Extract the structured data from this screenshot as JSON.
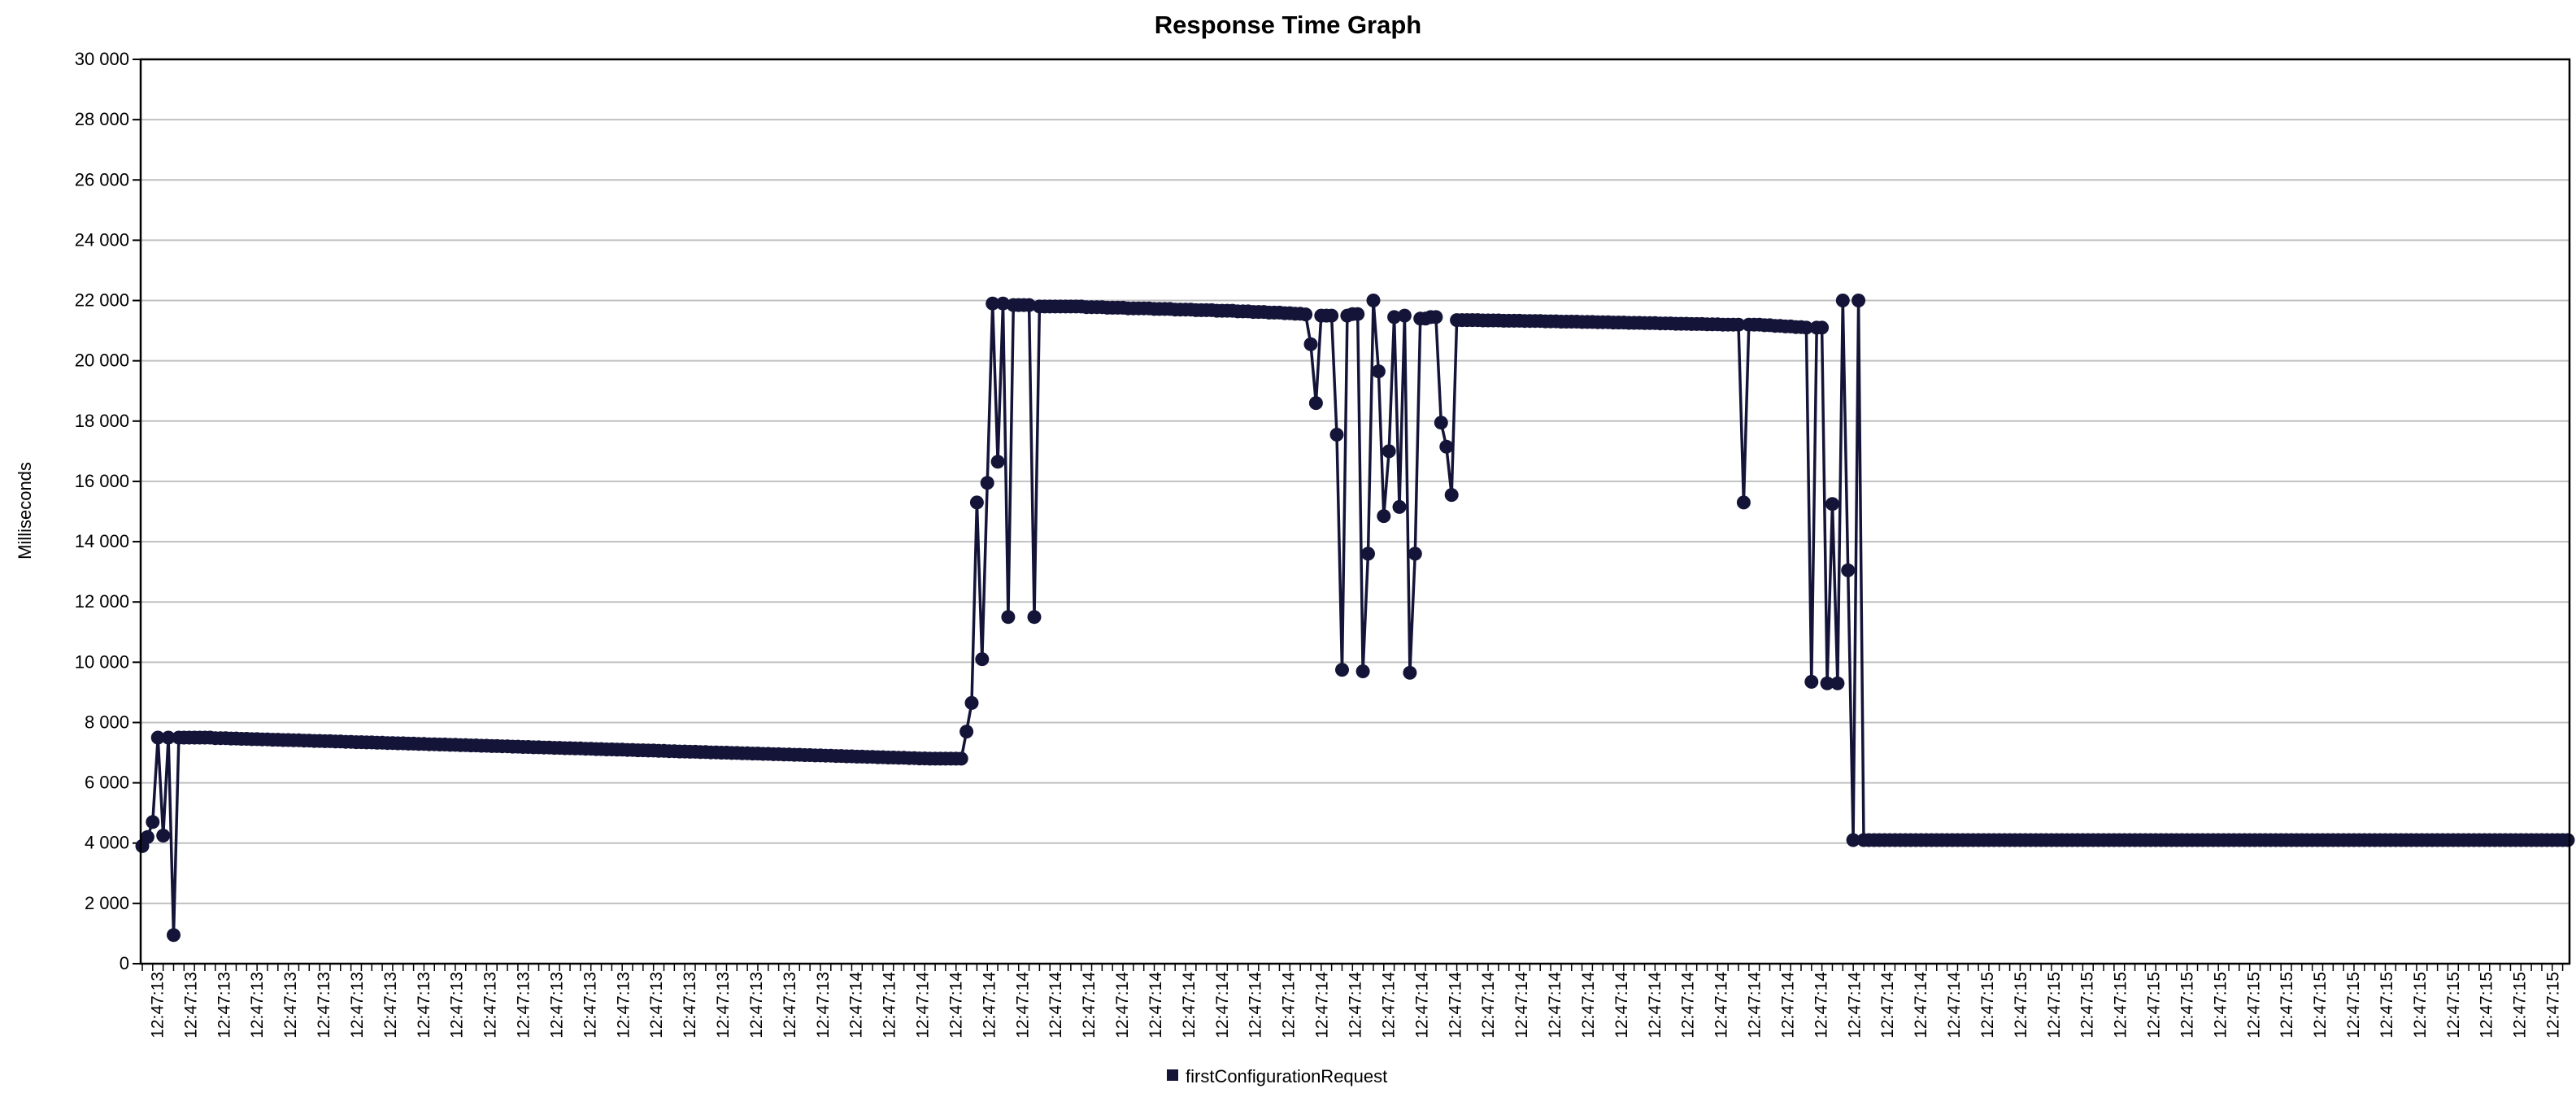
{
  "chart_data": {
    "type": "line",
    "title": "Response Time Graph",
    "xlabel": "",
    "ylabel": "Milliseconds",
    "ylim": [
      0,
      30000
    ],
    "yticks": [
      0,
      2000,
      4000,
      6000,
      8000,
      10000,
      12000,
      14000,
      16000,
      18000,
      20000,
      22000,
      24000,
      26000,
      28000,
      30000
    ],
    "ytick_labels": [
      "0",
      "2 000",
      "4 000",
      "6 000",
      "8 000",
      "10 000",
      "12 000",
      "14 000",
      "16 000",
      "18 000",
      "20 000",
      "22 000",
      "24 000",
      "26 000",
      "28 000",
      "30 000"
    ],
    "x_tick_labels": [
      "12:47:13",
      "12:47:13",
      "12:47:13",
      "12:47:13",
      "12:47:13",
      "12:47:13",
      "12:47:13",
      "12:47:13",
      "12:47:13",
      "12:47:13",
      "12:47:13",
      "12:47:13",
      "12:47:13",
      "12:47:13",
      "12:47:13",
      "12:47:13",
      "12:47:13",
      "12:47:13",
      "12:47:13",
      "12:47:13",
      "12:47:13",
      "12:47:14",
      "12:47:14",
      "12:47:14",
      "12:47:14",
      "12:47:14",
      "12:47:14",
      "12:47:14",
      "12:47:14",
      "12:47:14",
      "12:47:14",
      "12:47:14",
      "12:47:14",
      "12:47:14",
      "12:47:14",
      "12:47:14",
      "12:47:14",
      "12:47:14",
      "12:47:14",
      "12:47:14",
      "12:47:14",
      "12:47:14",
      "12:47:14",
      "12:47:14",
      "12:47:14",
      "12:47:14",
      "12:47:14",
      "12:47:14",
      "12:47:14",
      "12:47:14",
      "12:47:14",
      "12:47:14",
      "12:47:14",
      "12:47:14",
      "12:47:14",
      "12:47:15",
      "12:47:15",
      "12:47:15",
      "12:47:15",
      "12:47:15",
      "12:47:15",
      "12:47:15",
      "12:47:15",
      "12:47:15",
      "12:47:15",
      "12:47:15",
      "12:47:15",
      "12:47:15",
      "12:47:15",
      "12:47:15",
      "12:47:15",
      "12:47:15",
      "12:47:15"
    ],
    "grid": true,
    "legend": "bottom-center",
    "color": "#141438",
    "series": [
      {
        "name": "firstConfigurationRequest",
        "values": [
          3900,
          4200,
          4700,
          7500,
          4250,
          7500,
          950,
          7500,
          7500,
          7500,
          7500,
          7500,
          7500,
          7500,
          7480,
          7480,
          7480,
          7470,
          7470,
          7460,
          7460,
          7450,
          7450,
          7440,
          7440,
          7430,
          7430,
          7420,
          7420,
          7410,
          7410,
          7400,
          7400,
          7390,
          7390,
          7380,
          7380,
          7370,
          7370,
          7360,
          7360,
          7350,
          7350,
          7340,
          7340,
          7330,
          7330,
          7320,
          7320,
          7310,
          7310,
          7300,
          7300,
          7290,
          7290,
          7280,
          7280,
          7270,
          7270,
          7260,
          7260,
          7250,
          7250,
          7240,
          7240,
          7230,
          7230,
          7220,
          7220,
          7210,
          7210,
          7200,
          7200,
          7190,
          7190,
          7180,
          7180,
          7170,
          7170,
          7160,
          7160,
          7150,
          7150,
          7140,
          7140,
          7130,
          7130,
          7120,
          7120,
          7110,
          7110,
          7100,
          7100,
          7090,
          7090,
          7080,
          7080,
          7070,
          7070,
          7060,
          7060,
          7050,
          7050,
          7040,
          7040,
          7030,
          7030,
          7020,
          7020,
          7010,
          7010,
          7000,
          7000,
          6990,
          6990,
          6980,
          6980,
          6970,
          6970,
          6960,
          6960,
          6950,
          6950,
          6940,
          6940,
          6930,
          6930,
          6920,
          6920,
          6910,
          6910,
          6900,
          6900,
          6890,
          6890,
          6880,
          6880,
          6870,
          6870,
          6860,
          6860,
          6850,
          6850,
          6840,
          6840,
          6830,
          6830,
          6820,
          6820,
          6810,
          6810,
          6800,
          6800,
          6800,
          6800,
          6800,
          6800,
          6800,
          7700,
          8650,
          15300,
          10100,
          15950,
          21900,
          16650,
          21900,
          11500,
          21850,
          21850,
          21850,
          21850,
          11500,
          21800,
          21800,
          21800,
          21800,
          21800,
          21800,
          21800,
          21800,
          21800,
          21780,
          21780,
          21780,
          21780,
          21760,
          21760,
          21760,
          21760,
          21740,
          21740,
          21740,
          21740,
          21740,
          21720,
          21720,
          21720,
          21720,
          21700,
          21700,
          21700,
          21700,
          21680,
          21680,
          21680,
          21680,
          21660,
          21660,
          21660,
          21660,
          21640,
          21640,
          21640,
          21620,
          21620,
          21620,
          21600,
          21600,
          21600,
          21580,
          21580,
          21560,
          21560,
          21540,
          20550,
          18600,
          21500,
          21500,
          21500,
          17550,
          9750,
          21500,
          21550,
          21550,
          9700,
          13600,
          22000,
          19650,
          14850,
          17000,
          21450,
          15150,
          21500,
          9650,
          13600,
          21400,
          21400,
          21450,
          21450,
          17950,
          17150,
          15550,
          21350,
          21350,
          21350,
          21350,
          21350,
          21340,
          21340,
          21340,
          21340,
          21330,
          21330,
          21330,
          21330,
          21320,
          21320,
          21320,
          21320,
          21310,
          21310,
          21310,
          21300,
          21300,
          21300,
          21300,
          21290,
          21290,
          21290,
          21280,
          21280,
          21280,
          21270,
          21270,
          21270,
          21260,
          21260,
          21260,
          21250,
          21250,
          21250,
          21240,
          21240,
          21240,
          21230,
          21230,
          21230,
          21220,
          21220,
          21220,
          21210,
          21210,
          21210,
          21200,
          21200,
          21200,
          21200,
          15300,
          21200,
          21200,
          21200,
          21180,
          21180,
          21160,
          21160,
          21140,
          21140,
          21120,
          21120,
          21100,
          9350,
          21100,
          21100,
          9300,
          15250,
          9300,
          22000,
          13050,
          4100,
          22000,
          4100,
          4100,
          4100,
          4100,
          4100,
          4100,
          4100,
          4100,
          4100,
          4100,
          4100,
          4100,
          4100,
          4100,
          4100,
          4100,
          4100,
          4100,
          4100,
          4100,
          4100,
          4100,
          4100,
          4100,
          4100,
          4100,
          4100,
          4100,
          4100,
          4100,
          4100,
          4100,
          4100,
          4100,
          4100,
          4100,
          4100,
          4100,
          4100,
          4100,
          4100,
          4100,
          4100,
          4100,
          4100,
          4100,
          4100,
          4100,
          4100,
          4100,
          4100,
          4100,
          4100,
          4100,
          4100,
          4100,
          4100,
          4100,
          4100,
          4100,
          4100,
          4100,
          4100,
          4100,
          4100,
          4100,
          4100,
          4100,
          4100,
          4100,
          4100,
          4100,
          4100,
          4100,
          4100,
          4100,
          4100,
          4100,
          4100,
          4100,
          4100,
          4100,
          4100,
          4100,
          4100,
          4100,
          4100,
          4100,
          4100,
          4100,
          4100,
          4100,
          4100,
          4100,
          4100,
          4100,
          4100,
          4100,
          4100,
          4100,
          4100,
          4100,
          4100,
          4100,
          4100,
          4100,
          4100,
          4100,
          4100,
          4100,
          4100,
          4100,
          4100,
          4100,
          4100,
          4100,
          4100,
          4100,
          4100,
          4100,
          4100,
          4100,
          4100,
          4100,
          4100,
          4100,
          4100,
          4100,
          4100,
          4100,
          4100,
          4100,
          4100,
          4100,
          4100,
          4100
        ]
      }
    ]
  }
}
